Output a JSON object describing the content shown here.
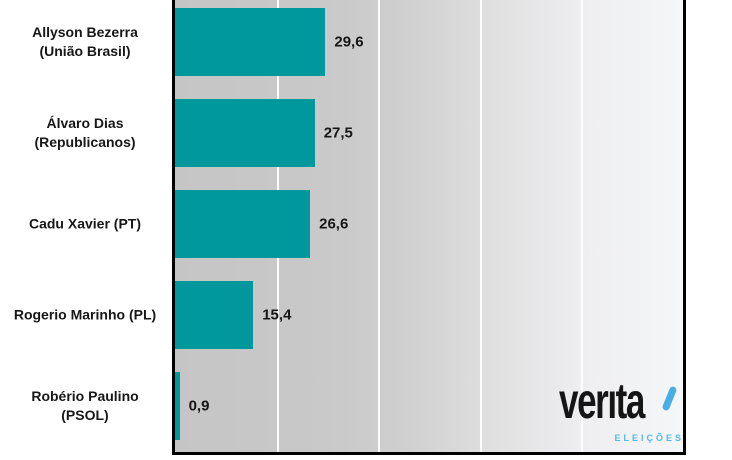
{
  "chart_data": {
    "type": "bar",
    "orientation": "horizontal",
    "title": "",
    "categories": [
      "Allyson Bezerra (União Brasil)",
      "Álvaro Dias (Republicanos)",
      "Cadu Xavier (PT)",
      "Rogerio Marinho (PL)",
      "Robério Paulino (PSOL)"
    ],
    "category_lines": [
      [
        "Allyson Bezerra",
        "(União Brasil)"
      ],
      [
        "Álvaro Dias",
        "(Republicanos)"
      ],
      [
        "Cadu Xavier (PT)"
      ],
      [
        "Rogerio Marinho (PL)"
      ],
      [
        "Robério Paulino",
        "(PSOL)"
      ]
    ],
    "values": [
      29.6,
      27.5,
      26.6,
      15.4,
      0.9
    ],
    "value_labels": [
      "29,6",
      "27,5",
      "26,6",
      "15,4",
      "0,9"
    ],
    "xlim": [
      0,
      100
    ],
    "gridline_values": [
      20,
      40,
      60,
      80
    ],
    "bar_color": "#00979D",
    "grid": "vertical-white-lines",
    "legend_position": "none",
    "value_label_color": "#161616",
    "category_label_color": "#171717"
  },
  "branding": {
    "logo_text": "veritá",
    "logo_word_render": "verıta",
    "logo_subtitle": "ELEIÇÕES",
    "logo_color": "#151515",
    "logo_accent_color": "#47AFE4",
    "logo_subtitle_color": "#55B8E8"
  }
}
